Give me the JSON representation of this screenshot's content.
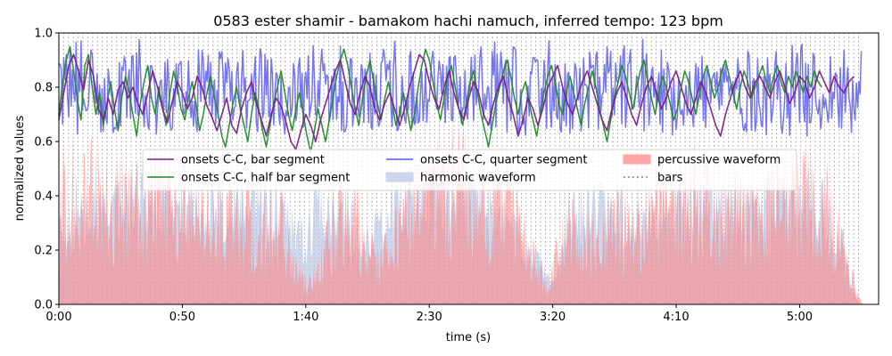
{
  "chart_data": {
    "type": "line",
    "title": "0583 ester shamir - bamakom hachi namuch, inferred tempo: 123 bpm",
    "xlabel": "time (s)",
    "ylabel": "normalized values",
    "xlim": [
      0,
      332
    ],
    "ylim": [
      0,
      1
    ],
    "x_ticks": [
      0,
      50,
      100,
      150,
      200,
      250,
      300
    ],
    "x_tick_labels": [
      "0:00",
      "0:50",
      "1:40",
      "2:30",
      "3:20",
      "4:10",
      "5:00"
    ],
    "y_ticks": [
      0,
      0.2,
      0.4,
      0.6,
      0.8,
      1.0
    ],
    "y_tick_labels": [
      "0.0",
      "0.2",
      "0.4",
      "0.6",
      "0.8",
      "1.0"
    ],
    "grid": false,
    "legend_position": "upper-center",
    "tempo_bpm": 123,
    "bar_period_s": 1.951,
    "x_end": 325,
    "series": [
      {
        "name": "onsets C-C, bar segment",
        "kind": "line",
        "color": "#7b1f87",
        "step": 2.0,
        "values": [
          0.68,
          0.78,
          0.88,
          0.92,
          0.86,
          0.79,
          0.9,
          0.84,
          0.72,
          0.68,
          0.76,
          0.7,
          0.79,
          0.82,
          0.76,
          0.8,
          0.74,
          0.7,
          0.78,
          0.86,
          0.8,
          0.72,
          0.67,
          0.75,
          0.82,
          0.78,
          0.72,
          0.76,
          0.84,
          0.8,
          0.73,
          0.69,
          0.64,
          0.7,
          0.76,
          0.66,
          0.63,
          0.72,
          0.78,
          0.82,
          0.74,
          0.68,
          0.62,
          0.7,
          0.76,
          0.73,
          0.67,
          0.6,
          0.57,
          0.64,
          0.7,
          0.66,
          0.6,
          0.68,
          0.74,
          0.8,
          0.86,
          0.9,
          0.82,
          0.74,
          0.7,
          0.78,
          0.84,
          0.8,
          0.72,
          0.68,
          0.74,
          0.78,
          0.72,
          0.66,
          0.72,
          0.8,
          0.86,
          0.92,
          0.9,
          0.82,
          0.76,
          0.72,
          0.8,
          0.86,
          0.78,
          0.72,
          0.68,
          0.76,
          0.82,
          0.78,
          0.7,
          0.66,
          0.74,
          0.8,
          0.84,
          0.76,
          0.7,
          0.62,
          0.68,
          0.76,
          0.72,
          0.66,
          0.72,
          0.8,
          0.84,
          0.88,
          0.8,
          0.74,
          0.7,
          0.76,
          0.82,
          0.86,
          0.8,
          0.74,
          0.68,
          0.64,
          0.72,
          0.78,
          0.82,
          0.76,
          0.7,
          0.66,
          0.74,
          0.8,
          0.84,
          0.78,
          0.72,
          0.76,
          0.82,
          0.86,
          0.8,
          0.74,
          0.7,
          0.76,
          0.82,
          0.78,
          0.72,
          0.66,
          0.62,
          0.7,
          0.76,
          0.82,
          0.86,
          0.8,
          0.76,
          0.82,
          0.84,
          0.8,
          0.76,
          0.82,
          0.86,
          0.8,
          0.74,
          0.78,
          0.84,
          0.82,
          0.76,
          0.8,
          0.86,
          0.82,
          0.78,
          0.84,
          0.8,
          0.78,
          0.82,
          0.84
        ]
      },
      {
        "name": "onsets C-C, half bar segment",
        "kind": "line",
        "color": "#1f8a24",
        "step": 1.5,
        "values": [
          0.7,
          0.82,
          0.9,
          0.95,
          0.86,
          0.75,
          0.68,
          0.88,
          0.92,
          0.8,
          0.7,
          0.78,
          0.66,
          0.74,
          0.82,
          0.72,
          0.64,
          0.76,
          0.84,
          0.78,
          0.7,
          0.62,
          0.74,
          0.82,
          0.88,
          0.76,
          0.7,
          0.8,
          0.72,
          0.66,
          0.78,
          0.86,
          0.8,
          0.72,
          0.68,
          0.76,
          0.82,
          0.74,
          0.64,
          0.7,
          0.78,
          0.84,
          0.76,
          0.7,
          0.62,
          0.58,
          0.66,
          0.74,
          0.8,
          0.72,
          0.66,
          0.6,
          0.7,
          0.78,
          0.72,
          0.64,
          0.58,
          0.66,
          0.74,
          0.8,
          0.86,
          0.78,
          0.7,
          0.64,
          0.72,
          0.78,
          0.7,
          0.62,
          0.56,
          0.64,
          0.72,
          0.66,
          0.6,
          0.68,
          0.76,
          0.84,
          0.9,
          0.94,
          0.88,
          0.8,
          0.72,
          0.66,
          0.76,
          0.84,
          0.9,
          0.82,
          0.74,
          0.68,
          0.76,
          0.82,
          0.74,
          0.66,
          0.7,
          0.78,
          0.72,
          0.64,
          0.7,
          0.8,
          0.88,
          0.94,
          0.9,
          0.82,
          0.74,
          0.68,
          0.76,
          0.84,
          0.88,
          0.8,
          0.72,
          0.66,
          0.74,
          0.82,
          0.86,
          0.78,
          0.7,
          0.64,
          0.58,
          0.66,
          0.74,
          0.8,
          0.86,
          0.9,
          0.84,
          0.76,
          0.7,
          0.78,
          0.82,
          0.74,
          0.68,
          0.62,
          0.7,
          0.78,
          0.84,
          0.88,
          0.82,
          0.74,
          0.7,
          0.78,
          0.84,
          0.78,
          0.72,
          0.66,
          0.74,
          0.8,
          0.86,
          0.8,
          0.72,
          0.66,
          0.6,
          0.68,
          0.76,
          0.82,
          0.88,
          0.84,
          0.78,
          0.72,
          0.8,
          0.86,
          0.9,
          0.82,
          0.76,
          0.7,
          0.78,
          0.84,
          0.8,
          0.74,
          0.68,
          0.72,
          0.8,
          0.86,
          0.82,
          0.76,
          0.7,
          0.78,
          0.84,
          0.88,
          0.82,
          0.76,
          0.8,
          0.86,
          0.9,
          0.84,
          0.78,
          0.72,
          0.8,
          0.86,
          0.82,
          0.76,
          0.8,
          0.84,
          0.88,
          0.82,
          0.78,
          0.84,
          0.88,
          0.82,
          0.78,
          0.84,
          0.8,
          0.86,
          0.82,
          0.78,
          0.84,
          0.8,
          0.86,
          0.82,
          0.8
        ]
      },
      {
        "name": "onsets C-C, quarter segment",
        "kind": "line",
        "color": "#5555ee",
        "step": 0.5,
        "band_low": 0.52,
        "band_high": 0.98,
        "values": []
      },
      {
        "name": "harmonic waveform",
        "kind": "area",
        "color": "#b9c6e4",
        "envelope": [
          [
            0,
            0.35
          ],
          [
            15,
            0.45
          ],
          [
            30,
            0.55
          ],
          [
            45,
            0.5
          ],
          [
            60,
            0.48
          ],
          [
            75,
            0.52
          ],
          [
            90,
            0.45
          ],
          [
            100,
            0.3
          ],
          [
            105,
            0.5
          ],
          [
            115,
            0.45
          ],
          [
            125,
            0.3
          ],
          [
            135,
            0.5
          ],
          [
            145,
            0.52
          ],
          [
            160,
            0.55
          ],
          [
            175,
            0.48
          ],
          [
            190,
            0.3
          ],
          [
            200,
            0.1
          ],
          [
            210,
            0.5
          ],
          [
            225,
            0.45
          ],
          [
            240,
            0.4
          ],
          [
            255,
            0.48
          ],
          [
            270,
            0.5
          ],
          [
            285,
            0.52
          ],
          [
            300,
            0.55
          ],
          [
            310,
            0.5
          ],
          [
            318,
            0.3
          ],
          [
            322,
            0.05
          ],
          [
            325,
            0.0
          ]
        ]
      },
      {
        "name": "percussive waveform",
        "kind": "area",
        "color": "#ff7f7f",
        "envelope": [
          [
            0,
            0.62
          ],
          [
            10,
            0.66
          ],
          [
            20,
            0.62
          ],
          [
            30,
            0.58
          ],
          [
            40,
            0.6
          ],
          [
            50,
            0.52
          ],
          [
            60,
            0.45
          ],
          [
            70,
            0.5
          ],
          [
            80,
            0.44
          ],
          [
            90,
            0.46
          ],
          [
            95,
            0.2
          ],
          [
            100,
            0.12
          ],
          [
            105,
            0.18
          ],
          [
            112,
            0.5
          ],
          [
            120,
            0.55
          ],
          [
            125,
            0.3
          ],
          [
            130,
            0.2
          ],
          [
            135,
            0.4
          ],
          [
            140,
            0.5
          ],
          [
            145,
            0.62
          ],
          [
            150,
            0.66
          ],
          [
            155,
            0.7
          ],
          [
            165,
            0.68
          ],
          [
            175,
            0.6
          ],
          [
            185,
            0.55
          ],
          [
            190,
            0.3
          ],
          [
            195,
            0.2
          ],
          [
            198,
            0.1
          ],
          [
            202,
            0.28
          ],
          [
            206,
            0.45
          ],
          [
            212,
            0.4
          ],
          [
            220,
            0.35
          ],
          [
            226,
            0.46
          ],
          [
            235,
            0.5
          ],
          [
            245,
            0.55
          ],
          [
            255,
            0.6
          ],
          [
            265,
            0.58
          ],
          [
            275,
            0.56
          ],
          [
            285,
            0.6
          ],
          [
            295,
            0.62
          ],
          [
            303,
            0.6
          ],
          [
            310,
            0.58
          ],
          [
            315,
            0.45
          ],
          [
            320,
            0.2
          ],
          [
            324,
            0.04
          ],
          [
            326,
            0.0
          ]
        ]
      },
      {
        "name": "bars",
        "kind": "vlines",
        "color": "#808080",
        "style": "dotted"
      }
    ]
  }
}
